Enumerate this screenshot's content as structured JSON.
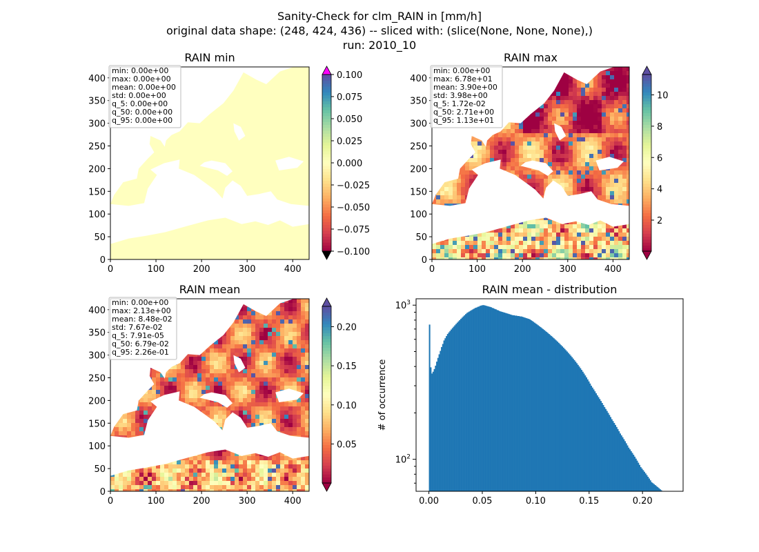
{
  "figure": {
    "suptitle_lines": [
      "Sanity-Check for clm_RAIN in [mm/h]",
      "original data shape: (248, 424, 436) -- sliced with: (slice(None, None, None),)",
      "run: 2010_10"
    ]
  },
  "colors": {
    "spectral": [
      "#9e0142",
      "#d53e4f",
      "#f46d43",
      "#fdae61",
      "#fee08b",
      "#ffffbf",
      "#e6f598",
      "#abdda4",
      "#66c2a5",
      "#3288bd",
      "#5e4fa2"
    ],
    "over_min": "#ff00ff",
    "under_min": "#000000",
    "hist_bar": "#1f77b4",
    "land_min": "#ffffbf"
  },
  "chart_data": [
    {
      "type": "heatmap",
      "title": "RAIN min",
      "xlim": [
        0,
        436
      ],
      "ylim": [
        0,
        424
      ],
      "xticks": [
        "0",
        "100",
        "200",
        "300",
        "400"
      ],
      "yticks": [
        "0",
        "50",
        "100",
        "150",
        "200",
        "250",
        "300",
        "350",
        "400"
      ],
      "stats": [
        "min: 0.00e+00",
        "max: 0.00e+00",
        "mean: 0.00e+00",
        "std: 0.00e+00",
        "q_5: 0.00e+00",
        "q_50: 0.00e+00",
        "q_95: 0.00e+00"
      ],
      "colorbar": {
        "min": -0.1,
        "max": 0.1,
        "ticks": [
          "0.100",
          "0.075",
          "0.050",
          "0.025",
          "0.000",
          "−0.025",
          "−0.050",
          "−0.075",
          "−0.100"
        ],
        "extend": "both"
      }
    },
    {
      "type": "heatmap",
      "title": "RAIN max",
      "xlim": [
        0,
        436
      ],
      "ylim": [
        0,
        424
      ],
      "xticks": [
        "0",
        "100",
        "200",
        "300",
        "400"
      ],
      "yticks": [
        "0",
        "50",
        "100",
        "150",
        "200",
        "250",
        "300",
        "350",
        "400"
      ],
      "stats": [
        "min: 0.00e+00",
        "max: 6.78e+01",
        "mean: 3.90e+00",
        "std: 3.98e+00",
        "q_5: 1.72e-02",
        "q_50: 2.71e+00",
        "q_95: 1.13e+01"
      ],
      "colorbar": {
        "min": 0.017,
        "max": 11.3,
        "ticks": [
          "10",
          "8",
          "6",
          "4",
          "2"
        ],
        "tick_values": [
          10,
          8,
          6,
          4,
          2
        ],
        "extend": "both"
      }
    },
    {
      "type": "heatmap",
      "title": "RAIN mean",
      "xlim": [
        0,
        436
      ],
      "ylim": [
        0,
        424
      ],
      "xticks": [
        "0",
        "100",
        "200",
        "300",
        "400"
      ],
      "yticks": [
        "0",
        "50",
        "100",
        "150",
        "200",
        "250",
        "300",
        "350",
        "400"
      ],
      "stats": [
        "min: 0.00e+00",
        "max: 2.13e+00",
        "mean: 8.48e-02",
        "std: 7.67e-02",
        "q_5: 7.91e-05",
        "q_50: 6.79e-02",
        "q_95: 2.26e-01"
      ],
      "colorbar": {
        "min": 7.91e-05,
        "max": 0.226,
        "ticks": [
          "0.20",
          "0.15",
          "0.10",
          "0.05"
        ],
        "tick_values": [
          0.2,
          0.15,
          0.1,
          0.05
        ],
        "extend": "both"
      }
    },
    {
      "type": "bar",
      "title": "RAIN mean - distribution",
      "ylabel": "# of occurrence",
      "xlabel": "",
      "yscale": "log",
      "xlim": [
        -0.012,
        0.238
      ],
      "ylim": [
        62,
        1100
      ],
      "xticks": [
        "0.00",
        "0.05",
        "0.10",
        "0.15",
        "0.20"
      ],
      "yticks": [
        "10^2",
        "10^3"
      ],
      "bin_start": 0.0,
      "bin_width": 0.00113,
      "values": [
        748,
        395,
        360,
        370,
        385,
        405,
        430,
        455,
        480,
        505,
        535,
        560,
        590,
        610,
        630,
        650,
        665,
        680,
        695,
        710,
        725,
        740,
        755,
        770,
        785,
        800,
        815,
        830,
        845,
        860,
        875,
        890,
        900,
        910,
        920,
        930,
        940,
        950,
        960,
        965,
        975,
        980,
        990,
        995,
        1000,
        1000,
        995,
        990,
        985,
        980,
        975,
        970,
        960,
        955,
        945,
        940,
        930,
        925,
        915,
        910,
        905,
        900,
        895,
        890,
        885,
        880,
        875,
        870,
        865,
        860,
        860,
        855,
        855,
        850,
        850,
        845,
        845,
        840,
        835,
        830,
        825,
        820,
        815,
        810,
        800,
        790,
        780,
        770,
        760,
        750,
        740,
        730,
        720,
        710,
        700,
        690,
        680,
        670,
        660,
        650,
        640,
        630,
        620,
        610,
        600,
        590,
        580,
        570,
        560,
        550,
        540,
        530,
        520,
        510,
        500,
        490,
        480,
        470,
        460,
        450,
        440,
        430,
        420,
        410,
        400,
        390,
        380,
        370,
        360,
        350,
        340,
        330,
        320,
        310,
        300,
        292,
        284,
        276,
        268,
        260,
        253,
        246,
        239,
        232,
        225,
        218,
        212,
        206,
        200,
        194,
        188,
        182,
        177,
        172,
        167,
        162,
        157,
        152,
        147,
        143,
        139,
        135,
        131,
        127,
        123,
        119,
        116,
        113,
        110,
        107,
        104,
        101,
        98,
        95,
        92,
        89,
        87,
        85,
        83,
        81,
        79,
        77,
        75,
        73,
        71,
        70,
        69,
        68,
        67,
        66,
        65,
        64,
        63,
        62,
        61,
        60,
        59,
        58,
        57,
        56
      ]
    }
  ]
}
